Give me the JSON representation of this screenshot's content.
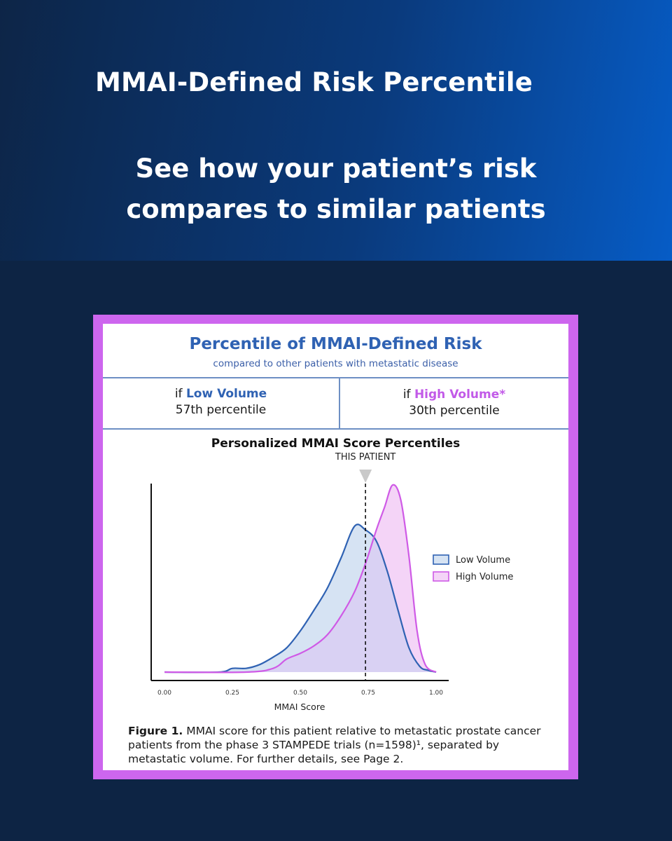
{
  "hero": {
    "title": "MMAI-Defined Risk Percentile",
    "subtitle_line1": "See how your patient’s risk",
    "subtitle_line2": "compares to similar patients"
  },
  "card": {
    "title": "Percentile of MMAI-Defined Risk",
    "subtitle": "compared to other patients with metastatic disease",
    "low": {
      "prefix": "if",
      "label": "Low Volume",
      "value": "57th percentile"
    },
    "high": {
      "prefix": "if",
      "label": "High Volume*",
      "value": "30th percentile"
    },
    "caption_bold": "Figure 1.",
    "caption_text": "MMAI score for this patient relative to metastatic prostate cancer patients from the phase 3 STAMPEDE trials (n=1598)¹, separated by metastatic volume. For further details, see Page 2."
  },
  "colors": {
    "low_line": "#2f62b3",
    "low_fill": "#d6e3f3",
    "high_line": "#cf5ae6",
    "high_fill": "#f4d4f7",
    "overlap_fill": "#d9d1f3",
    "frame": "#cd66ee"
  },
  "chart_data": {
    "type": "area",
    "title": "Personalized MMAI Score Percentiles",
    "xlabel": "MMAI Score",
    "ylabel": "",
    "xlim": [
      0,
      1
    ],
    "ylim": [
      0,
      1
    ],
    "xticks": [
      "0.00",
      "0.25",
      "0.50",
      "0.75",
      "1.00"
    ],
    "marker": {
      "x": 0.74,
      "label": "THIS PATIENT"
    },
    "legend_position": "right",
    "series": [
      {
        "name": "Low Volume",
        "x": [
          0.0,
          0.2,
          0.25,
          0.3,
          0.35,
          0.4,
          0.45,
          0.5,
          0.55,
          0.6,
          0.65,
          0.7,
          0.74,
          0.78,
          0.82,
          0.86,
          0.9,
          0.94,
          0.97,
          1.0
        ],
        "y": [
          0.0,
          0.0,
          0.02,
          0.02,
          0.04,
          0.08,
          0.13,
          0.22,
          0.33,
          0.45,
          0.61,
          0.78,
          0.76,
          0.7,
          0.54,
          0.33,
          0.13,
          0.03,
          0.01,
          0.0
        ]
      },
      {
        "name": "High Volume",
        "x": [
          0.0,
          0.3,
          0.4,
          0.45,
          0.5,
          0.55,
          0.6,
          0.65,
          0.7,
          0.74,
          0.78,
          0.81,
          0.84,
          0.87,
          0.9,
          0.93,
          0.96,
          1.0
        ],
        "y": [
          0.0,
          0.0,
          0.02,
          0.07,
          0.1,
          0.14,
          0.2,
          0.3,
          0.43,
          0.58,
          0.76,
          0.88,
          1.0,
          0.92,
          0.62,
          0.22,
          0.04,
          0.0
        ]
      }
    ]
  }
}
